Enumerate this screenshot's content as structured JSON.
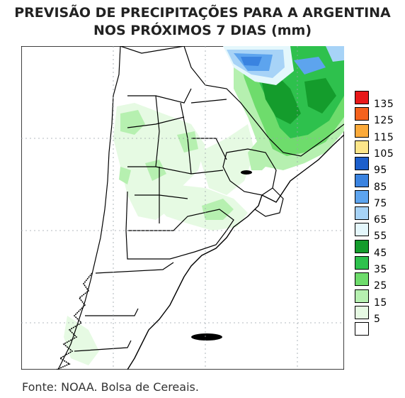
{
  "title": {
    "line1": "PREVISÃO DE PRECIPITAÇÕES PARA A ARGENTINA",
    "line2": "NOS PRÓXIMOS 7 DIAS (mm)"
  },
  "legend": {
    "levels": [
      {
        "label": "135",
        "color": "#e8191a"
      },
      {
        "label": "125",
        "color": "#f5621d"
      },
      {
        "label": "115",
        "color": "#fbaa3a"
      },
      {
        "label": "105",
        "color": "#fde68a"
      },
      {
        "label": "95",
        "color": "#1c5fcc"
      },
      {
        "label": "85",
        "color": "#3a83e0"
      },
      {
        "label": "75",
        "color": "#5da4ee"
      },
      {
        "label": "65",
        "color": "#a7d3f7"
      },
      {
        "label": "55",
        "color": "#e4f7fc"
      },
      {
        "label": "45",
        "color": "#149c2c"
      },
      {
        "label": "35",
        "color": "#2ec14d"
      },
      {
        "label": "25",
        "color": "#6edc6c"
      },
      {
        "label": "15",
        "color": "#b6f0b0"
      },
      {
        "label": "5",
        "color": "#e6fae3"
      },
      {
        "label": "",
        "color": "#ffffff"
      }
    ]
  },
  "source": "Fonte: NOAA. Bolsa de Cereais."
}
